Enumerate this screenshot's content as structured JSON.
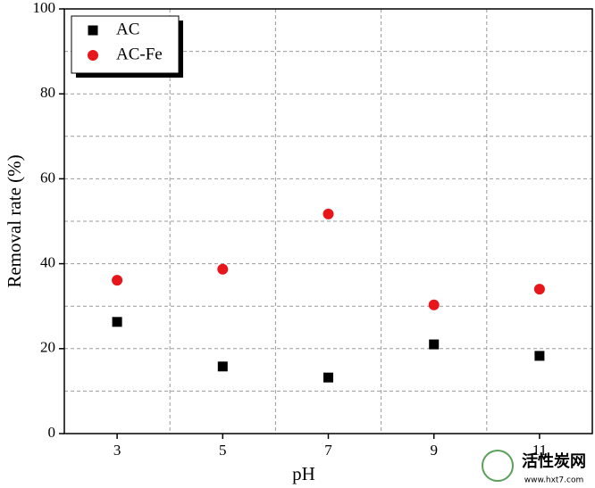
{
  "chart_data": {
    "type": "scatter",
    "x_label": "pH",
    "y_label": "Removal rate (%)",
    "xlim": [
      2,
      12
    ],
    "xticks": [
      3,
      5,
      7,
      9,
      11
    ],
    "ylim": [
      0,
      100
    ],
    "yticks": [
      0,
      20,
      40,
      60,
      80,
      100
    ],
    "grid": true,
    "legend": "upper-left",
    "series": [
      {
        "name": "AC",
        "color": "#000000",
        "marker": "square",
        "x": [
          3,
          5,
          7,
          9,
          11
        ],
        "values": [
          26.3,
          15.8,
          13.2,
          21.0,
          18.3
        ]
      },
      {
        "name": "AC-Fe",
        "color": "#e8151b",
        "marker": "circle",
        "x": [
          3,
          5,
          7,
          9,
          11
        ],
        "values": [
          36.1,
          38.7,
          51.7,
          30.3,
          34.0
        ]
      }
    ]
  },
  "watermark": {
    "text": "活性炭网",
    "url": "www.hxt7.com"
  }
}
